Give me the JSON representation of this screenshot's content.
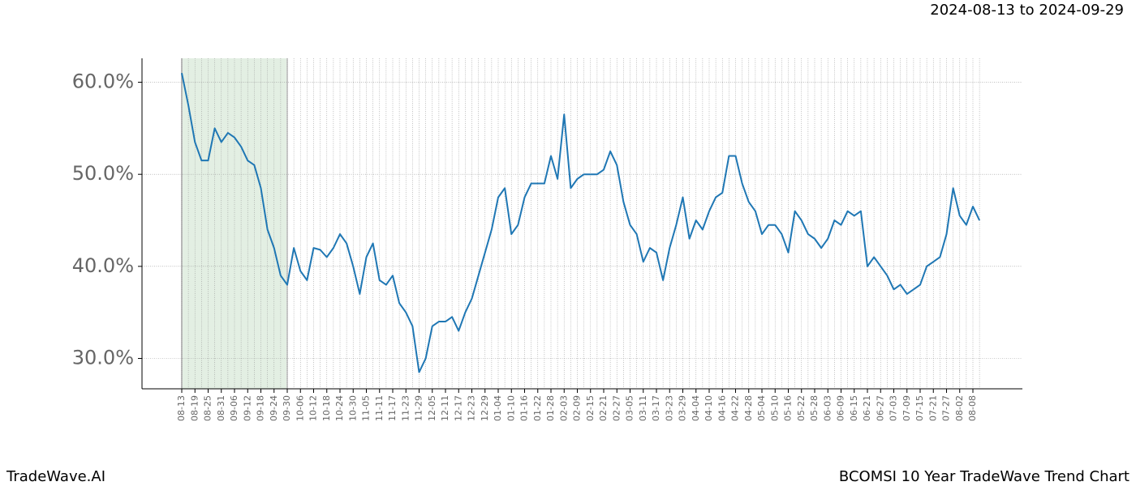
{
  "header": {
    "date_range": "2024-08-13 to 2024-09-29"
  },
  "footer": {
    "brand": "TradeWave.AI",
    "caption": "BCOMSI 10 Year TradeWave Trend Chart"
  },
  "chart_data": {
    "type": "line",
    "categories": [
      "08-13",
      null,
      "08-19",
      null,
      "08-25",
      null,
      "08-31",
      null,
      "09-06",
      null,
      "09-12",
      null,
      "09-18",
      null,
      "09-24",
      null,
      "09-30",
      null,
      "10-06",
      null,
      "10-12",
      null,
      "10-18",
      null,
      "10-24",
      null,
      "10-30",
      null,
      "11-05",
      null,
      "11-11",
      null,
      "11-17",
      null,
      "11-23",
      null,
      "11-29",
      null,
      "12-05",
      null,
      "12-11",
      null,
      "12-17",
      null,
      "12-23",
      null,
      "12-29",
      null,
      "01-04",
      null,
      "01-10",
      null,
      "01-16",
      null,
      "01-22",
      null,
      "01-28",
      null,
      "02-03",
      null,
      "02-09",
      null,
      "02-15",
      null,
      "02-21",
      null,
      "02-27",
      null,
      "03-05",
      null,
      "03-11",
      null,
      "03-17",
      null,
      "03-23",
      null,
      "03-29",
      null,
      "04-04",
      null,
      "04-10",
      null,
      "04-16",
      null,
      "04-22",
      null,
      "04-28",
      null,
      "05-04",
      null,
      "05-10",
      null,
      "05-16",
      null,
      "05-22",
      null,
      "05-28",
      null,
      "06-03",
      null,
      "06-09",
      null,
      "06-15",
      null,
      "06-21",
      null,
      "06-27",
      null,
      "07-03",
      null,
      "07-09",
      null,
      "07-15",
      null,
      "07-21",
      null,
      "07-27",
      null,
      "08-02",
      null,
      "08-08",
      null
    ],
    "series": [
      {
        "name": "BCOMSI",
        "color": "#1f77b4",
        "values": [
          61,
          57.5,
          53.5,
          51.5,
          51.5,
          55,
          53.5,
          54.5,
          54,
          53,
          51.5,
          51,
          48.5,
          44,
          42,
          39,
          38,
          42,
          39.5,
          38.5,
          42,
          41.8,
          41,
          42,
          43.5,
          42.5,
          40,
          37,
          41,
          42.5,
          38.5,
          38,
          39,
          36,
          35,
          33.5,
          28.5,
          30,
          33.5,
          34,
          34,
          34.5,
          33,
          35,
          36.5,
          39,
          41.5,
          44,
          47.5,
          48.5,
          43.5,
          44.5,
          47.5,
          49,
          49,
          49,
          52,
          49.5,
          56.5,
          48.5,
          49.5,
          50,
          50,
          50,
          50.5,
          52.5,
          51,
          47,
          44.5,
          43.5,
          40.5,
          42,
          41.5,
          38.5,
          42,
          44.5,
          47.5,
          43,
          45,
          44,
          46,
          47.5,
          48,
          52,
          52,
          49,
          47,
          46,
          43.5,
          44.5,
          44.5,
          43.5,
          41.5,
          46,
          45,
          43.5,
          43,
          42,
          43,
          45,
          44.5,
          46,
          45.5,
          46,
          40,
          41,
          40,
          39,
          37.5,
          38,
          37,
          37.5,
          38,
          40,
          40.5,
          41,
          43.5,
          48.5,
          45.5,
          44.5,
          46.5,
          45
        ]
      }
    ],
    "ylim": [
      26.7,
      62.6
    ],
    "yticks": [
      {
        "value": 30,
        "label": "30.0%"
      },
      {
        "value": 40,
        "label": "40.0%"
      },
      {
        "value": 50,
        "label": "50.0%"
      },
      {
        "value": 60,
        "label": "60.0%"
      }
    ],
    "grid": true,
    "shade": {
      "start": "08-13",
      "end": "09-30",
      "color": "#e3efe3"
    }
  }
}
